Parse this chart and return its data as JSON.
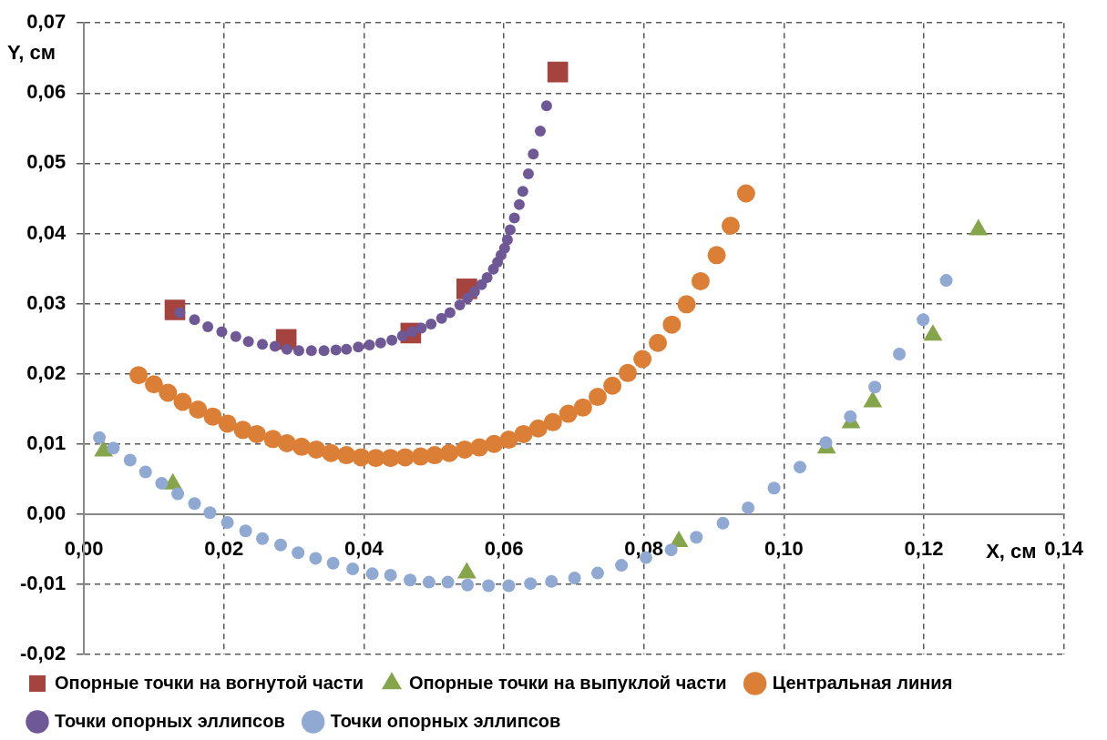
{
  "chart_data": {
    "type": "scatter",
    "xlabel": "X, см",
    "ylabel": "Y, см",
    "xlim": [
      0,
      0.14
    ],
    "ylim": [
      -0.02,
      0.07
    ],
    "xticks": [
      {
        "value": 0,
        "label": "0,00"
      },
      {
        "value": 0.02,
        "label": "0,02"
      },
      {
        "value": 0.04,
        "label": "0,04"
      },
      {
        "value": 0.06,
        "label": "0,06"
      },
      {
        "value": 0.08,
        "label": "0,08"
      },
      {
        "value": 0.1,
        "label": "0,10"
      },
      {
        "value": 0.12,
        "label": "0,12"
      },
      {
        "value": 0.14,
        "label": "0,14"
      }
    ],
    "yticks": [
      {
        "value": -0.02,
        "label": "-0,02"
      },
      {
        "value": -0.01,
        "label": "-0,01"
      },
      {
        "value": 0,
        "label": "0,00"
      },
      {
        "value": 0.01,
        "label": "0,01"
      },
      {
        "value": 0.02,
        "label": "0,02"
      },
      {
        "value": 0.03,
        "label": "0,03"
      },
      {
        "value": 0.04,
        "label": "0,04"
      },
      {
        "value": 0.05,
        "label": "0,05"
      },
      {
        "value": 0.06,
        "label": "0,06"
      },
      {
        "value": 0.07,
        "label": "0,07"
      }
    ],
    "grid": true,
    "legend": "bottom",
    "series": [
      {
        "name": "Опорные точки на вогнутой части",
        "color": "#a5443f",
        "marker": "square",
        "x": [
          0.013,
          0.0289,
          0.0467,
          0.0547,
          0.0677
        ],
        "values": [
          0.0291,
          0.0249,
          0.0258,
          0.0321,
          0.063
        ]
      },
      {
        "name": "Опорные точки на выпуклой части",
        "color": "#86a44a",
        "marker": "triangle",
        "x": [
          0.0028,
          0.0127,
          0.0547,
          0.085,
          0.1061,
          0.1096,
          0.1127,
          0.1213,
          0.1278
        ],
        "values": [
          0.009,
          0.0043,
          -0.0084,
          -0.0039,
          0.0094,
          0.013,
          0.016,
          0.0255,
          0.0405
        ]
      },
      {
        "name": "Центральная линия",
        "color": "#db7f37",
        "marker": "circle",
        "x": [
          0.0078,
          0.01,
          0.012,
          0.0141,
          0.0163,
          0.0184,
          0.0205,
          0.0227,
          0.0247,
          0.027,
          0.029,
          0.0311,
          0.0332,
          0.0353,
          0.0375,
          0.0396,
          0.0417,
          0.0438,
          0.0459,
          0.0481,
          0.0501,
          0.0522,
          0.0544,
          0.0565,
          0.0586,
          0.0607,
          0.0628,
          0.0649,
          0.067,
          0.0692,
          0.0713,
          0.0734,
          0.0755,
          0.0777,
          0.0798,
          0.082,
          0.084,
          0.0861,
          0.0881,
          0.0904,
          0.0924,
          0.0946
        ],
        "values": [
          0.0198,
          0.0185,
          0.0173,
          0.016,
          0.0149,
          0.0139,
          0.0129,
          0.012,
          0.0114,
          0.0107,
          0.0101,
          0.0096,
          0.0092,
          0.0087,
          0.0084,
          0.0081,
          0.008,
          0.008,
          0.0081,
          0.0082,
          0.0084,
          0.0087,
          0.0092,
          0.0095,
          0.01,
          0.0106,
          0.0114,
          0.0122,
          0.0131,
          0.0143,
          0.0152,
          0.0167,
          0.0183,
          0.0201,
          0.0221,
          0.0244,
          0.027,
          0.0299,
          0.0332,
          0.0369,
          0.0411,
          0.0457
        ]
      },
      {
        "name": "Точки опорных эллипсов",
        "color": "#6f5896",
        "marker": "circle",
        "x": [
          0.0137,
          0.0158,
          0.0177,
          0.0197,
          0.0217,
          0.0235,
          0.0255,
          0.0273,
          0.029,
          0.0307,
          0.0325,
          0.0343,
          0.036,
          0.0375,
          0.0392,
          0.0408,
          0.0424,
          0.044,
          0.0455,
          0.0469,
          0.0482,
          0.0496,
          0.0511,
          0.0523,
          0.0537,
          0.0548,
          0.0558,
          0.0568,
          0.0576,
          0.0585,
          0.0591,
          0.0596,
          0.0601,
          0.0605,
          0.0609,
          0.0615,
          0.0622,
          0.0627,
          0.0635,
          0.0642,
          0.0652,
          0.0661
        ],
        "values": [
          0.0287,
          0.0277,
          0.0267,
          0.026,
          0.0253,
          0.0246,
          0.0242,
          0.0239,
          0.0235,
          0.0233,
          0.0233,
          0.0233,
          0.0234,
          0.0235,
          0.0238,
          0.0241,
          0.0244,
          0.0248,
          0.0254,
          0.026,
          0.0265,
          0.0271,
          0.0279,
          0.0287,
          0.0298,
          0.0308,
          0.0317,
          0.0327,
          0.0337,
          0.0349,
          0.0359,
          0.0369,
          0.0379,
          0.0391,
          0.0405,
          0.0422,
          0.0441,
          0.046,
          0.0485,
          0.0513,
          0.0546,
          0.0582
        ]
      },
      {
        "name": "Точки опорных эллипсов",
        "color": "#8fa9d2",
        "marker": "circle",
        "x": [
          0.0022,
          0.0042,
          0.0066,
          0.0088,
          0.0111,
          0.0134,
          0.0158,
          0.018,
          0.0205,
          0.0231,
          0.0255,
          0.0281,
          0.0306,
          0.0331,
          0.0356,
          0.0384,
          0.0412,
          0.0438,
          0.0466,
          0.0493,
          0.052,
          0.0548,
          0.0578,
          0.0607,
          0.0638,
          0.0668,
          0.0701,
          0.0734,
          0.0768,
          0.0803,
          0.0839,
          0.0875,
          0.0913,
          0.0949,
          0.0986,
          0.1023,
          0.106,
          0.1095,
          0.113,
          0.1165,
          0.1199,
          0.1232
        ],
        "values": [
          0.0109,
          0.0094,
          0.0077,
          0.006,
          0.0044,
          0.0029,
          0.0015,
          0.0002,
          -0.0012,
          -0.0024,
          -0.0035,
          -0.0044,
          -0.0055,
          -0.0063,
          -0.007,
          -0.0078,
          -0.0085,
          -0.0087,
          -0.0094,
          -0.0097,
          -0.0097,
          -0.0101,
          -0.0102,
          -0.0102,
          -0.0099,
          -0.0096,
          -0.0091,
          -0.0084,
          -0.0073,
          -0.0062,
          -0.0051,
          -0.0033,
          -0.0013,
          0.0009,
          0.0037,
          0.0067,
          0.0102,
          0.0139,
          0.0181,
          0.0228,
          0.0277,
          0.0333
        ]
      }
    ]
  }
}
